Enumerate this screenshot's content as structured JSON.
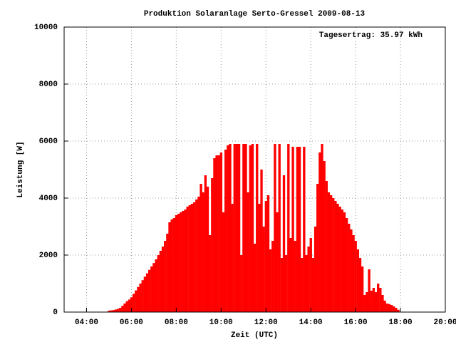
{
  "chart_data": {
    "type": "impulse",
    "title": "Produktion Solaranlage Serto-Gressel 2009-08-13",
    "annotation": "Tagesertrag: 35.97 kWh",
    "xlabel": "Zeit (UTC)",
    "ylabel": "Leistung [W]",
    "color": "#ff0000",
    "grid": true,
    "xlim": [
      3,
      20
    ],
    "ylim": [
      0,
      10000
    ],
    "xticks": [
      {
        "value": 4,
        "label": "04:00"
      },
      {
        "value": 6,
        "label": "06:00"
      },
      {
        "value": 8,
        "label": "08:00"
      },
      {
        "value": 10,
        "label": "10:00"
      },
      {
        "value": 12,
        "label": "12:00"
      },
      {
        "value": 14,
        "label": "14:00"
      },
      {
        "value": 16,
        "label": "16:00"
      },
      {
        "value": 18,
        "label": "18:00"
      },
      {
        "value": 20,
        "label": "20:00"
      }
    ],
    "yticks": [
      0,
      2000,
      4000,
      6000,
      8000,
      10000
    ],
    "x": [
      5,
      5.1,
      5.2,
      5.3,
      5.4,
      5.5,
      5.6,
      5.7,
      5.8,
      5.9,
      6,
      6.1,
      6.2,
      6.3,
      6.4,
      6.5,
      6.6,
      6.7,
      6.8,
      6.9,
      7,
      7.1,
      7.2,
      7.3,
      7.4,
      7.5,
      7.6,
      7.7,
      7.8,
      7.9,
      8,
      8.1,
      8.2,
      8.3,
      8.4,
      8.5,
      8.6,
      8.7,
      8.8,
      8.9,
      9,
      9.1,
      9.2,
      9.3,
      9.4,
      9.5,
      9.6,
      9.7,
      9.8,
      9.9,
      10,
      10.1,
      10.2,
      10.3,
      10.4,
      10.5,
      10.6,
      10.7,
      10.8,
      10.9,
      11,
      11.1,
      11.2,
      11.3,
      11.4,
      11.5,
      11.6,
      11.7,
      11.8,
      11.9,
      12,
      12.1,
      12.2,
      12.3,
      12.4,
      12.5,
      12.6,
      12.7,
      12.8,
      12.9,
      13,
      13.1,
      13.2,
      13.3,
      13.4,
      13.5,
      13.6,
      13.7,
      13.8,
      13.9,
      14,
      14.1,
      14.2,
      14.3,
      14.4,
      14.5,
      14.6,
      14.7,
      14.8,
      14.9,
      15,
      15.1,
      15.2,
      15.3,
      15.4,
      15.5,
      15.6,
      15.7,
      15.8,
      15.9,
      16,
      16.1,
      16.2,
      16.3,
      16.4,
      16.5,
      16.6,
      16.7,
      16.8,
      16.9,
      17,
      17.1,
      17.2,
      17.3,
      17.4,
      17.5,
      17.6,
      17.7,
      17.8,
      17.9
    ],
    "values": [
      50,
      60,
      70,
      90,
      110,
      150,
      220,
      300,
      380,
      440,
      520,
      640,
      760,
      880,
      1000,
      1120,
      1240,
      1360,
      1480,
      1600,
      1720,
      1850,
      2000,
      2150,
      2300,
      2500,
      2750,
      3150,
      3250,
      3300,
      3400,
      3450,
      3500,
      3550,
      3600,
      3700,
      3750,
      3800,
      3850,
      3950,
      4050,
      4500,
      4200,
      4800,
      4400,
      2700,
      4700,
      5400,
      5500,
      5500,
      5600,
      3500,
      5700,
      5850,
      5900,
      3800,
      5900,
      5900,
      5900,
      2000,
      5900,
      5900,
      4200,
      5850,
      5900,
      2400,
      5900,
      3800,
      5000,
      3000,
      3900,
      4100,
      2200,
      2500,
      5900,
      3500,
      5900,
      1900,
      4800,
      2000,
      5900,
      2600,
      5800,
      2500,
      5800,
      5800,
      1900,
      5800,
      2000,
      2300,
      2600,
      1900,
      3000,
      4500,
      5600,
      5900,
      5300,
      4600,
      4200,
      4100,
      4000,
      3900,
      3800,
      3700,
      3600,
      3500,
      3300,
      3100,
      2900,
      2700,
      2500,
      2200,
      1900,
      1600,
      600,
      700,
      1500,
      750,
      850,
      700,
      1000,
      850,
      600,
      400,
      300,
      280,
      250,
      200,
      150,
      80
    ]
  }
}
